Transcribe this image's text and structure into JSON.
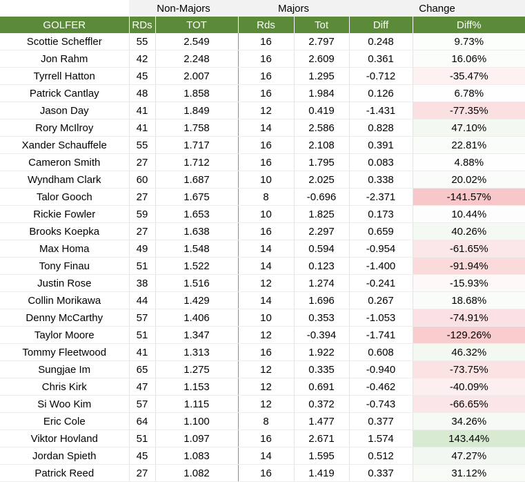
{
  "group_headers": [
    "",
    "Non-Majors",
    "Majors",
    "Change"
  ],
  "columns": [
    "GOLFER",
    "RDs",
    "TOT",
    "Rds",
    "Tot",
    "Diff",
    "Diff%"
  ],
  "colors": {
    "header_green": "#5b8a38",
    "positive_max": "#d9ead3",
    "negative_max": "#f8c6c9"
  },
  "rows": [
    {
      "golfer": "Scottie Scheffler",
      "nm_rds": "55",
      "nm_tot": "2.549",
      "m_rds": "16",
      "m_tot": "2.797",
      "diff": "0.248",
      "pct": "9.73%",
      "pct_value": 9.73
    },
    {
      "golfer": "Jon Rahm",
      "nm_rds": "42",
      "nm_tot": "2.248",
      "m_rds": "16",
      "m_tot": "2.609",
      "diff": "0.361",
      "pct": "16.06%",
      "pct_value": 16.06
    },
    {
      "golfer": "Tyrrell Hatton",
      "nm_rds": "45",
      "nm_tot": "2.007",
      "m_rds": "16",
      "m_tot": "1.295",
      "diff": "-0.712",
      "pct": "-35.47%",
      "pct_value": -35.47
    },
    {
      "golfer": "Patrick Cantlay",
      "nm_rds": "48",
      "nm_tot": "1.858",
      "m_rds": "16",
      "m_tot": "1.984",
      "diff": "0.126",
      "pct": "6.78%",
      "pct_value": 6.78
    },
    {
      "golfer": "Jason Day",
      "nm_rds": "41",
      "nm_tot": "1.849",
      "m_rds": "12",
      "m_tot": "0.419",
      "diff": "-1.431",
      "pct": "-77.35%",
      "pct_value": -77.35
    },
    {
      "golfer": "Rory McIlroy",
      "nm_rds": "41",
      "nm_tot": "1.758",
      "m_rds": "14",
      "m_tot": "2.586",
      "diff": "0.828",
      "pct": "47.10%",
      "pct_value": 47.1
    },
    {
      "golfer": "Xander Schauffele",
      "nm_rds": "55",
      "nm_tot": "1.717",
      "m_rds": "16",
      "m_tot": "2.108",
      "diff": "0.391",
      "pct": "22.81%",
      "pct_value": 22.81
    },
    {
      "golfer": "Cameron Smith",
      "nm_rds": "27",
      "nm_tot": "1.712",
      "m_rds": "16",
      "m_tot": "1.795",
      "diff": "0.083",
      "pct": "4.88%",
      "pct_value": 4.88
    },
    {
      "golfer": "Wyndham Clark",
      "nm_rds": "60",
      "nm_tot": "1.687",
      "m_rds": "10",
      "m_tot": "2.025",
      "diff": "0.338",
      "pct": "20.02%",
      "pct_value": 20.02
    },
    {
      "golfer": "Talor Gooch",
      "nm_rds": "27",
      "nm_tot": "1.675",
      "m_rds": "8",
      "m_tot": "-0.696",
      "diff": "-2.371",
      "pct": "-141.57%",
      "pct_value": -141.57
    },
    {
      "golfer": "Rickie Fowler",
      "nm_rds": "59",
      "nm_tot": "1.653",
      "m_rds": "10",
      "m_tot": "1.825",
      "diff": "0.173",
      "pct": "10.44%",
      "pct_value": 10.44
    },
    {
      "golfer": "Brooks Koepka",
      "nm_rds": "27",
      "nm_tot": "1.638",
      "m_rds": "16",
      "m_tot": "2.297",
      "diff": "0.659",
      "pct": "40.26%",
      "pct_value": 40.26
    },
    {
      "golfer": "Max Homa",
      "nm_rds": "49",
      "nm_tot": "1.548",
      "m_rds": "14",
      "m_tot": "0.594",
      "diff": "-0.954",
      "pct": "-61.65%",
      "pct_value": -61.65
    },
    {
      "golfer": "Tony Finau",
      "nm_rds": "51",
      "nm_tot": "1.522",
      "m_rds": "14",
      "m_tot": "0.123",
      "diff": "-1.400",
      "pct": "-91.94%",
      "pct_value": -91.94
    },
    {
      "golfer": "Justin Rose",
      "nm_rds": "38",
      "nm_tot": "1.516",
      "m_rds": "12",
      "m_tot": "1.274",
      "diff": "-0.241",
      "pct": "-15.93%",
      "pct_value": -15.93
    },
    {
      "golfer": "Collin Morikawa",
      "nm_rds": "44",
      "nm_tot": "1.429",
      "m_rds": "14",
      "m_tot": "1.696",
      "diff": "0.267",
      "pct": "18.68%",
      "pct_value": 18.68
    },
    {
      "golfer": "Denny McCarthy",
      "nm_rds": "57",
      "nm_tot": "1.406",
      "m_rds": "10",
      "m_tot": "0.353",
      "diff": "-1.053",
      "pct": "-74.91%",
      "pct_value": -74.91
    },
    {
      "golfer": "Taylor Moore",
      "nm_rds": "51",
      "nm_tot": "1.347",
      "m_rds": "12",
      "m_tot": "-0.394",
      "diff": "-1.741",
      "pct": "-129.26%",
      "pct_value": -129.26
    },
    {
      "golfer": "Tommy Fleetwood",
      "nm_rds": "41",
      "nm_tot": "1.313",
      "m_rds": "16",
      "m_tot": "1.922",
      "diff": "0.608",
      "pct": "46.32%",
      "pct_value": 46.32
    },
    {
      "golfer": "Sungjae Im",
      "nm_rds": "65",
      "nm_tot": "1.275",
      "m_rds": "12",
      "m_tot": "0.335",
      "diff": "-0.940",
      "pct": "-73.75%",
      "pct_value": -73.75
    },
    {
      "golfer": "Chris Kirk",
      "nm_rds": "47",
      "nm_tot": "1.153",
      "m_rds": "12",
      "m_tot": "0.691",
      "diff": "-0.462",
      "pct": "-40.09%",
      "pct_value": -40.09
    },
    {
      "golfer": "Si Woo Kim",
      "nm_rds": "57",
      "nm_tot": "1.115",
      "m_rds": "12",
      "m_tot": "0.372",
      "diff": "-0.743",
      "pct": "-66.65%",
      "pct_value": -66.65
    },
    {
      "golfer": "Eric Cole",
      "nm_rds": "64",
      "nm_tot": "1.100",
      "m_rds": "8",
      "m_tot": "1.477",
      "diff": "0.377",
      "pct": "34.26%",
      "pct_value": 34.26
    },
    {
      "golfer": "Viktor Hovland",
      "nm_rds": "51",
      "nm_tot": "1.097",
      "m_rds": "16",
      "m_tot": "2.671",
      "diff": "1.574",
      "pct": "143.44%",
      "pct_value": 143.44
    },
    {
      "golfer": "Jordan Spieth",
      "nm_rds": "45",
      "nm_tot": "1.083",
      "m_rds": "14",
      "m_tot": "1.595",
      "diff": "0.512",
      "pct": "47.27%",
      "pct_value": 47.27
    },
    {
      "golfer": "Patrick Reed",
      "nm_rds": "27",
      "nm_tot": "1.082",
      "m_rds": "16",
      "m_tot": "1.419",
      "diff": "0.337",
      "pct": "31.12%",
      "pct_value": 31.12
    }
  ]
}
